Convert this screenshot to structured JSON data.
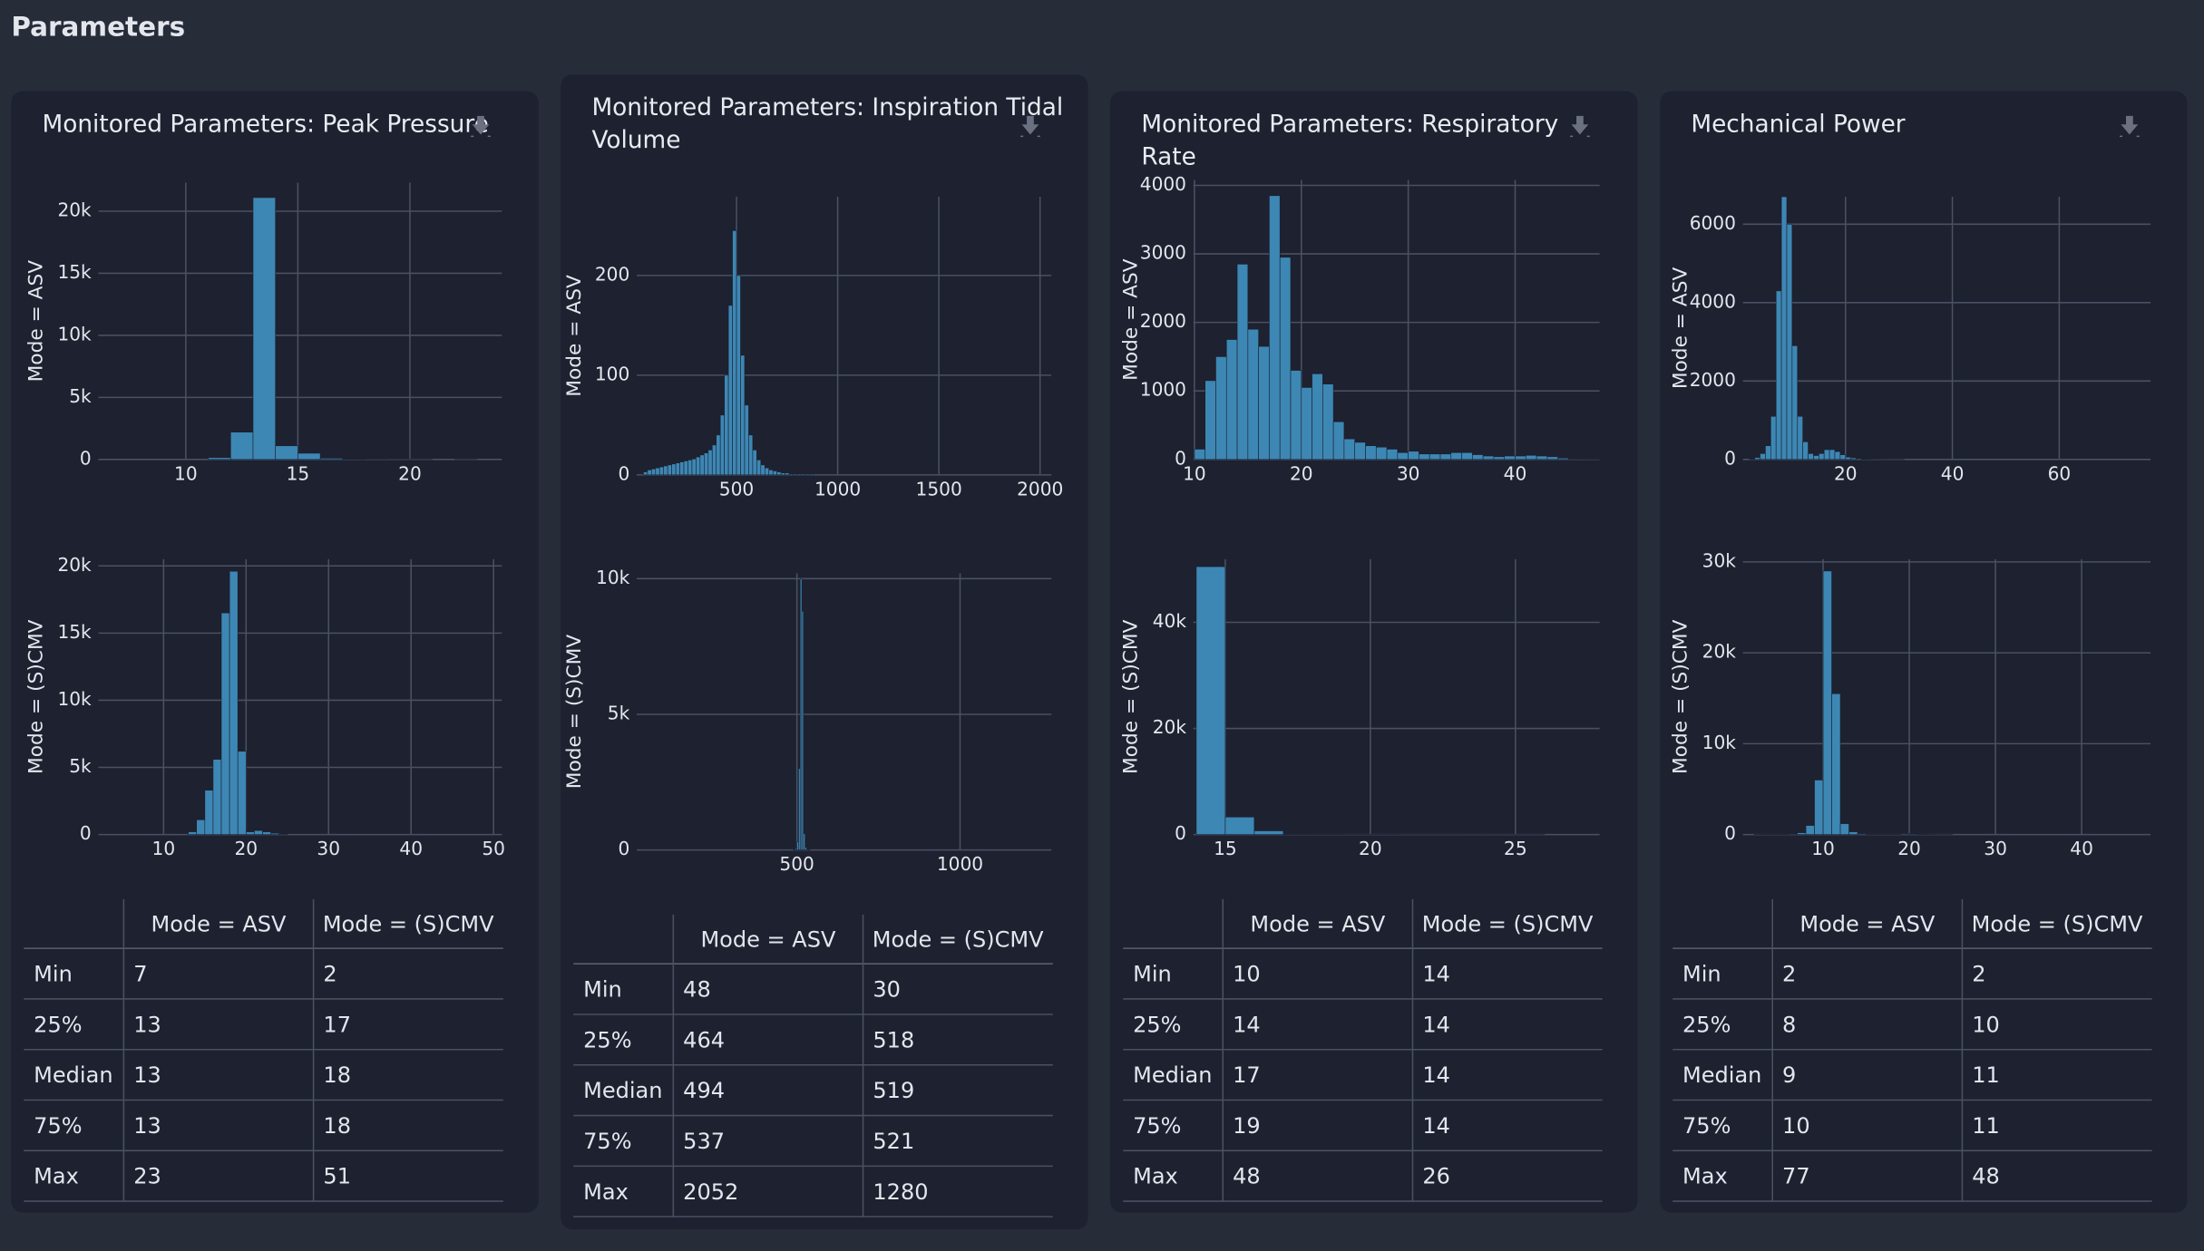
{
  "header": {
    "title": "Parameters"
  },
  "panels": [
    {
      "title": "Monitored Parameters: Peak Pressure",
      "charts": [
        {
          "type": "histogram",
          "y_label": "Mode = ASV",
          "color": "#3d87b4",
          "grid": true,
          "bins": [
            7,
            8,
            9,
            10,
            11,
            12,
            13,
            14,
            15,
            16,
            17,
            18,
            19,
            20,
            21,
            22,
            23
          ],
          "counts": [
            0,
            0,
            0,
            0,
            150,
            2200,
            21100,
            1100,
            500,
            100,
            50,
            20,
            10,
            5,
            0,
            5
          ],
          "xlim": [
            6.1,
            24.1
          ],
          "ylim": [
            0,
            22300
          ],
          "xticks": [
            10,
            15,
            20
          ],
          "yticks": [
            0,
            {
              "value": 5000,
              "label": "5k"
            },
            {
              "value": 10000,
              "label": "10k"
            },
            {
              "value": 15000,
              "label": "15k"
            },
            {
              "value": 20000,
              "label": "20k"
            }
          ]
        },
        {
          "type": "histogram",
          "y_label": "Mode = (S)CMV",
          "color": "#3d87b4",
          "grid": true,
          "bins": [
            13,
            14,
            15,
            16,
            17,
            18,
            19,
            20,
            21,
            22,
            23,
            24,
            25
          ],
          "counts": [
            200,
            1100,
            3300,
            5600,
            16500,
            19600,
            6200,
            200,
            300,
            200,
            100,
            50
          ],
          "xlim": [
            2.1,
            51
          ],
          "ylim": [
            0,
            20500
          ],
          "xticks": [
            10,
            20,
            30,
            40,
            50
          ],
          "yticks": [
            0,
            {
              "value": 5000,
              "label": "5k"
            },
            {
              "value": 10000,
              "label": "10k"
            },
            {
              "value": 15000,
              "label": "15k"
            },
            {
              "value": 20000,
              "label": "20k"
            }
          ]
        }
      ],
      "table": {
        "columns": [
          "Mode = ASV",
          "Mode = (S)CMV"
        ],
        "rows": [
          [
            "Min",
            7,
            2
          ],
          [
            "25%",
            13,
            17
          ],
          [
            "Median",
            13,
            18
          ],
          [
            "75%",
            13,
            18
          ],
          [
            "Max",
            23,
            51
          ]
        ]
      }
    },
    {
      "title": "Monitored Parameters: Inspiration Tidal Volume",
      "charts": [
        {
          "type": "histogram",
          "y_label": "Mode = ASV",
          "color": "#3d87b4",
          "grid": true,
          "bins": [
            40,
            60,
            80,
            100,
            120,
            140,
            160,
            180,
            200,
            220,
            240,
            260,
            280,
            300,
            320,
            340,
            360,
            380,
            400,
            420,
            440,
            460,
            480,
            500,
            520,
            540,
            560,
            580,
            600,
            620,
            640,
            660,
            680,
            700,
            720,
            740,
            760,
            780,
            800,
            820,
            840,
            860,
            880
          ],
          "counts": [
            3,
            5,
            6,
            7,
            8,
            9,
            10,
            11,
            12,
            13,
            14,
            15,
            16,
            18,
            20,
            22,
            25,
            30,
            40,
            60,
            100,
            170,
            245,
            200,
            120,
            70,
            40,
            25,
            15,
            10,
            7,
            5,
            4,
            3,
            2,
            2,
            1,
            1,
            1,
            1,
            1,
            1
          ],
          "xlim": [
            7,
            2056
          ],
          "ylim": [
            0,
            279
          ],
          "xticks": [
            500,
            1000,
            1500,
            2000
          ],
          "yticks": [
            0,
            100,
            200
          ]
        },
        {
          "type": "histogram",
          "y_label": "Mode = (S)CMV",
          "color": "#3d87b4",
          "grid": true,
          "bins": [
            490,
            495,
            500,
            505,
            510,
            515,
            520,
            525,
            530,
            535,
            540
          ],
          "counts": [
            20,
            60,
            300,
            3000,
            10000,
            8800,
            600,
            100,
            30,
            10
          ],
          "xlim": [
            9,
            1280
          ],
          "ylim": [
            0,
            10200
          ],
          "xticks": [
            500,
            1000
          ],
          "yticks": [
            0,
            {
              "value": 5000,
              "label": "5k"
            },
            {
              "value": 10000,
              "label": "10k"
            }
          ]
        }
      ],
      "table": {
        "columns": [
          "Mode = ASV",
          "Mode = (S)CMV"
        ],
        "rows": [
          [
            "Min",
            48,
            30
          ],
          [
            "25%",
            464,
            518
          ],
          [
            "Median",
            494,
            519
          ],
          [
            "75%",
            537,
            521
          ],
          [
            "Max",
            2052,
            1280
          ]
        ]
      }
    },
    {
      "title": "Monitored Parameters: Respiratory Rate",
      "charts": [
        {
          "type": "histogram",
          "y_label": "Mode = ASV",
          "color": "#3d87b4",
          "grid": true,
          "bins": [
            10,
            11,
            12,
            13,
            14,
            15,
            16,
            17,
            18,
            19,
            20,
            21,
            22,
            23,
            24,
            25,
            26,
            27,
            28,
            29,
            30,
            31,
            32,
            33,
            34,
            35,
            36,
            37,
            38,
            39,
            40,
            41,
            42,
            43,
            44,
            45,
            46,
            47,
            48
          ],
          "counts": [
            150,
            1150,
            1500,
            1750,
            2850,
            1900,
            1650,
            3850,
            2950,
            1300,
            1050,
            1250,
            1100,
            550,
            300,
            250,
            200,
            180,
            150,
            100,
            120,
            80,
            80,
            80,
            100,
            100,
            70,
            50,
            40,
            50,
            50,
            60,
            50,
            40,
            20,
            10,
            5,
            5
          ],
          "xlim": [
            9.9,
            47.9
          ],
          "ylim": [
            0,
            4080
          ],
          "xticks": [
            10,
            20,
            30,
            40
          ],
          "yticks": [
            0,
            1000,
            2000,
            3000,
            4000
          ]
        },
        {
          "type": "histogram",
          "y_label": "Mode = (S)CMV",
          "color": "#3d87b4",
          "grid": true,
          "bins": [
            14,
            15,
            16,
            17,
            18,
            19,
            20,
            21,
            22,
            23,
            24,
            25,
            26
          ],
          "counts": [
            50500,
            3300,
            700,
            100,
            60,
            40,
            30,
            20,
            15,
            10,
            5,
            5
          ],
          "xlim": [
            13.9,
            27.9
          ],
          "ylim": [
            0,
            51900
          ],
          "xticks": [
            15,
            20,
            25
          ],
          "yticks": [
            0,
            {
              "value": 20000,
              "label": "20k"
            },
            {
              "value": 40000,
              "label": "40k"
            }
          ]
        }
      ],
      "table": {
        "columns": [
          "Mode = ASV",
          "Mode = (S)CMV"
        ],
        "rows": [
          [
            "Min",
            10,
            14
          ],
          [
            "25%",
            14,
            14
          ],
          [
            "Median",
            17,
            14
          ],
          [
            "75%",
            19,
            14
          ],
          [
            "Max",
            48,
            26
          ]
        ]
      }
    },
    {
      "title": "Mechanical Power",
      "charts": [
        {
          "type": "histogram",
          "y_label": "Mode = ASV",
          "color": "#3d87b4",
          "grid": true,
          "bins": [
            2,
            3,
            4,
            5,
            6,
            7,
            8,
            9,
            10,
            11,
            12,
            13,
            14,
            15,
            16,
            17,
            18,
            19,
            20,
            21,
            22,
            23,
            24,
            25,
            26,
            27,
            28,
            29,
            30,
            31
          ],
          "counts": [
            10,
            50,
            150,
            350,
            1100,
            4300,
            6700,
            6000,
            2900,
            1100,
            450,
            150,
            100,
            150,
            250,
            250,
            200,
            120,
            60,
            40,
            25,
            15,
            10,
            5,
            5,
            3,
            2,
            2,
            1
          ],
          "xlim": [
            0.8,
            77.1
          ],
          "ylim": [
            0,
            6700
          ],
          "xticks": [
            20,
            40,
            60
          ],
          "yticks": [
            0,
            2000,
            4000,
            6000
          ]
        },
        {
          "type": "histogram",
          "y_label": "Mode = (S)CMV",
          "color": "#3d87b4",
          "grid": true,
          "bins": [
            2,
            3,
            4,
            5,
            6,
            7,
            8,
            9,
            10,
            11,
            12,
            13,
            14,
            15,
            16,
            17,
            18,
            19,
            20,
            21,
            22,
            23,
            24,
            25
          ],
          "counts": [
            20,
            30,
            40,
            50,
            80,
            200,
            1000,
            6000,
            29000,
            15500,
            1200,
            300,
            100,
            60,
            40,
            30,
            30,
            100,
            80,
            30,
            20,
            10,
            5
          ],
          "xlim": [
            0.7,
            48
          ],
          "ylim": [
            0,
            30300
          ],
          "xticks": [
            10,
            20,
            30,
            40
          ],
          "yticks": [
            0,
            {
              "value": 10000,
              "label": "10k"
            },
            {
              "value": 20000,
              "label": "20k"
            },
            {
              "value": 30000,
              "label": "30k"
            }
          ]
        }
      ],
      "table": {
        "columns": [
          "Mode = ASV",
          "Mode = (S)CMV"
        ],
        "rows": [
          [
            "Min",
            2,
            2
          ],
          [
            "25%",
            8,
            10
          ],
          [
            "Median",
            9,
            11
          ],
          [
            "75%",
            10,
            11
          ],
          [
            "Max",
            77,
            48
          ]
        ]
      }
    }
  ]
}
